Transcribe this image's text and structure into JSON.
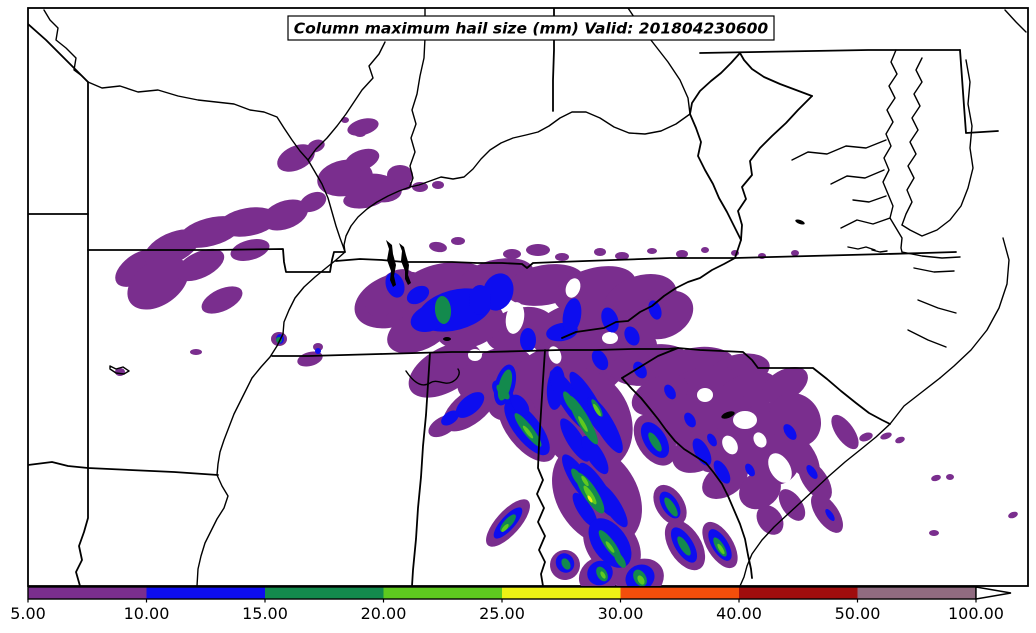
{
  "title": {
    "text": "Column maximum hail size (mm) Valid: 201804230600"
  },
  "colorbar": {
    "tick_labels": [
      "5.00",
      "10.00",
      "15.00",
      "20.00",
      "25.00",
      "30.00",
      "40.00",
      "50.00",
      "100.00"
    ],
    "levels_mm": [
      5,
      10,
      15,
      20,
      25,
      30,
      40,
      50,
      100
    ],
    "segment_colors": [
      "#7A2E8E",
      "#0D0DEF",
      "#138A4D",
      "#5EC91F",
      "#EDF215",
      "#F34E0B",
      "#A00D0D",
      "#906B80"
    ],
    "extend": "max",
    "extend_color": "#FFFFFF"
  },
  "chart_data": {
    "type": "heatmap",
    "title": "Column maximum hail size (mm) Valid: 201804230600",
    "variable": "Column maximum hail size",
    "units": "mm",
    "valid_time": "201804230600",
    "region": "Southeastern United States (Missouri and Arkansas east to the Atlantic coast)",
    "projection_note": "filled-contour hail field over state borders, rivers and coastline",
    "colorbar_levels_mm": [
      5,
      10,
      15,
      20,
      25,
      30,
      40,
      50,
      100
    ],
    "colorbar_colors": [
      "#7A2E8E",
      "#0D0DEF",
      "#138A4D",
      "#5EC91F",
      "#EDF215",
      "#F34E0B",
      "#A00D0D",
      "#906B80"
    ],
    "colorbar_extend": "max",
    "legend_position": "bottom",
    "grid": false,
    "features": [
      {
        "area": "central Missouri into southern Illinois",
        "max_category_mm": "5-10"
      },
      {
        "area": "western and middle Tennessee",
        "max_category_mm": "15-20"
      },
      {
        "area": "northern Georgia / western South Carolina storm streaks",
        "max_category_mm": "25-30"
      },
      {
        "area": "piedmont and coastal Carolinas",
        "max_category_mm": "5-15"
      },
      {
        "area": "isolated cells offshore of the Carolina coast",
        "max_category_mm": "5-10"
      }
    ]
  }
}
